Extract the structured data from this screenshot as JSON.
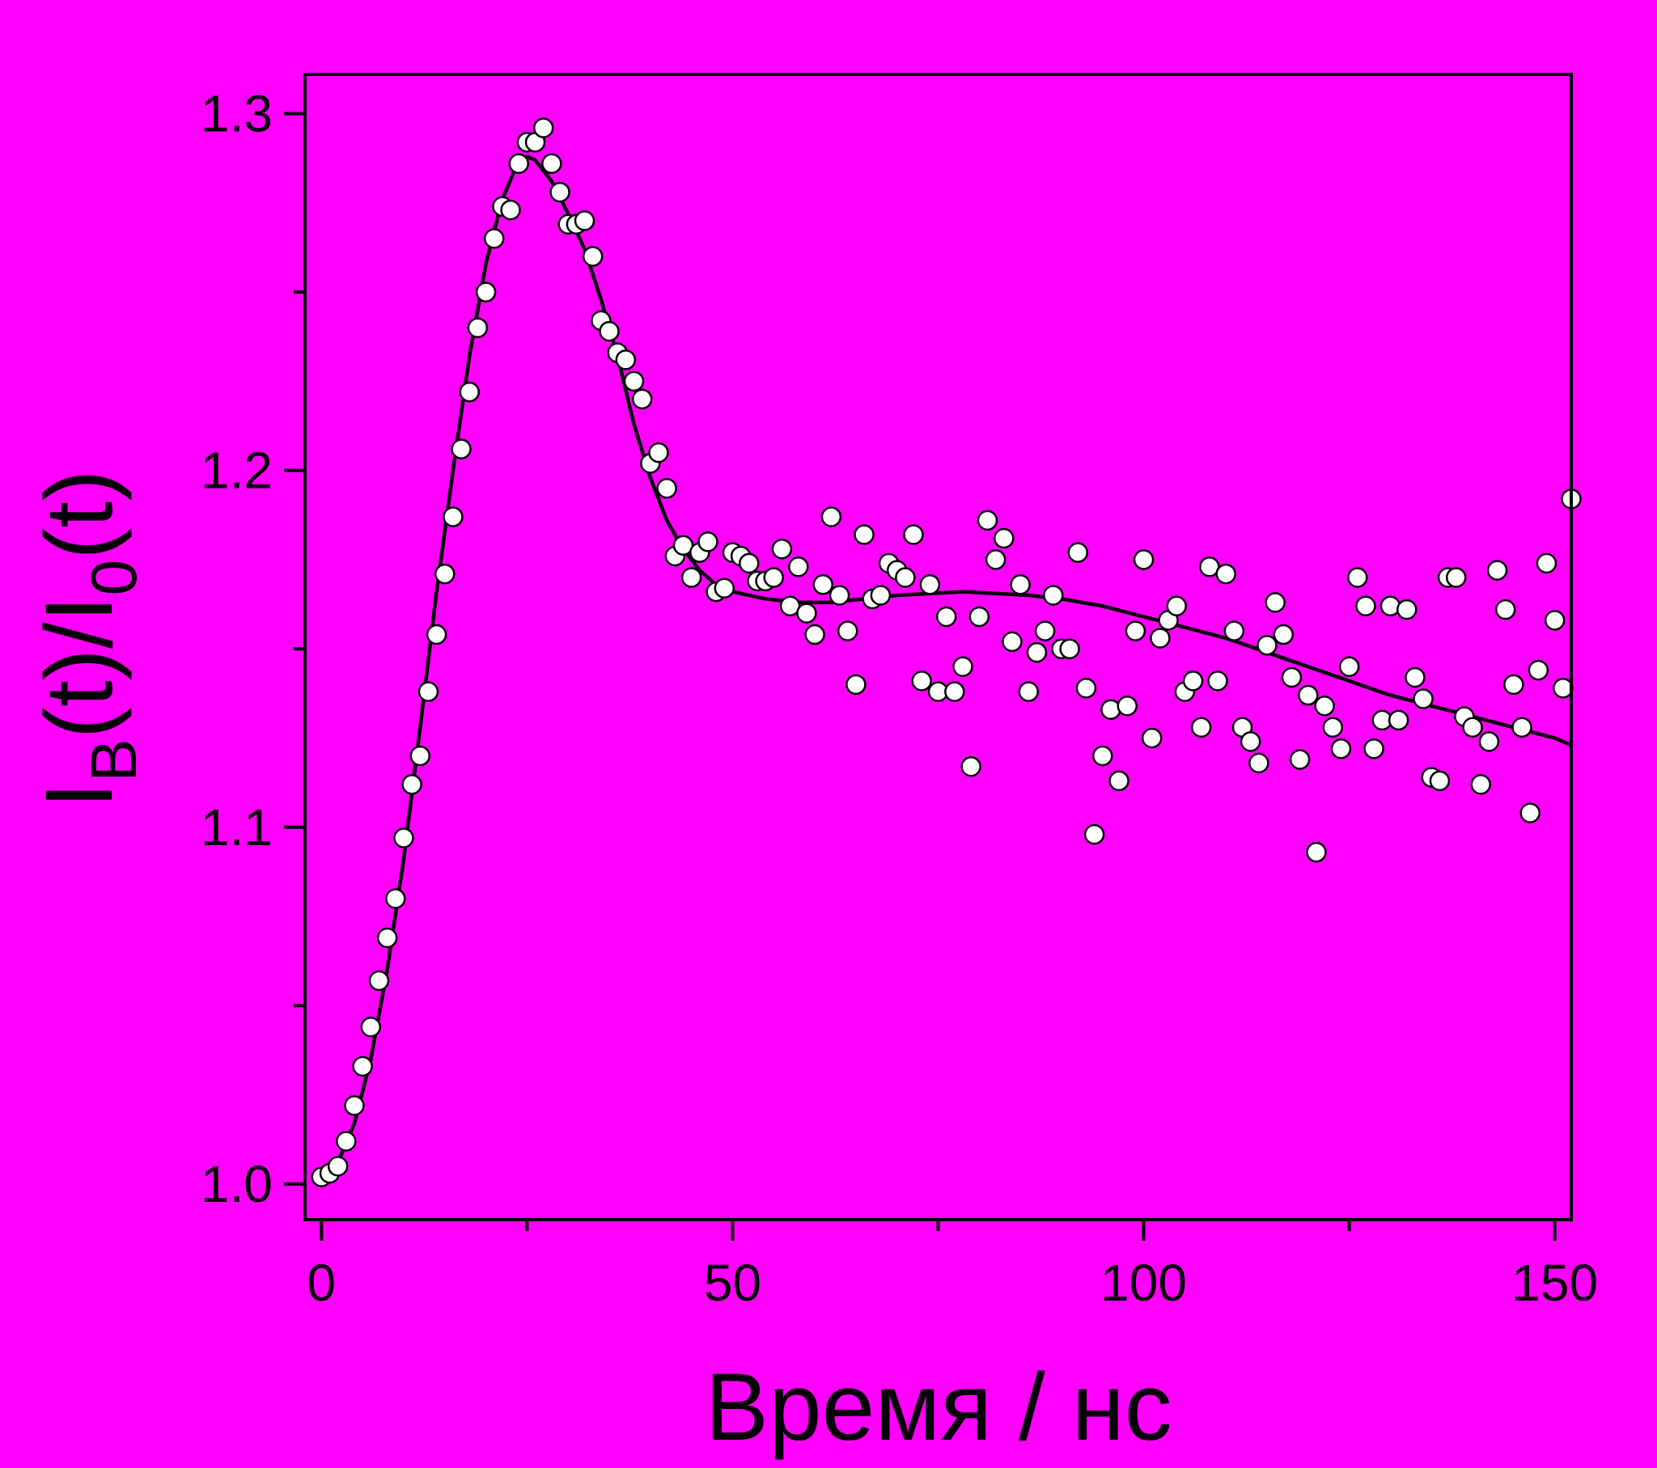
{
  "colors": {
    "background": "#ff00ff",
    "axis": "#000000",
    "marker_fill": "#ffffff",
    "marker_stroke": "#000000",
    "fit_line": "#000000"
  },
  "chart_data": {
    "type": "scatter",
    "title": "",
    "xlabel": "Время / нс",
    "ylabel": {
      "main": "I",
      "sub1": "B",
      "mid": "(t)/I",
      "sub2": "0",
      "tail": "(t)"
    },
    "xlim": [
      -2,
      152
    ],
    "ylim": [
      0.99,
      1.311
    ],
    "x_ticks": [
      0,
      50,
      100,
      150
    ],
    "x_tick_labels": [
      "0",
      "50",
      "100",
      "150"
    ],
    "y_ticks": [
      1.0,
      1.1,
      1.2,
      1.3
    ],
    "y_tick_labels": [
      "1.0",
      "1.1",
      "1.2",
      "1.3"
    ],
    "x_minor_ticks": [
      25,
      75,
      125
    ],
    "y_minor_ticks": [
      1.05,
      1.15,
      1.25
    ],
    "grid": false,
    "legend": "none",
    "series": [
      {
        "kind": "points",
        "marker": "open-circle",
        "points": [
          [
            0.0,
            1.002
          ],
          [
            1.0,
            1.003
          ],
          [
            2.0,
            1.005
          ],
          [
            3.0,
            1.012
          ],
          [
            4.0,
            1.022
          ],
          [
            5.0,
            1.033
          ],
          [
            6.0,
            1.044
          ],
          [
            7.0,
            1.057
          ],
          [
            8.0,
            1.069
          ],
          [
            9.0,
            1.08
          ],
          [
            10.0,
            1.097
          ],
          [
            11.0,
            1.112
          ],
          [
            12.0,
            1.12
          ],
          [
            13.0,
            1.138
          ],
          [
            14.0,
            1.154
          ],
          [
            15.0,
            1.171
          ],
          [
            16.0,
            1.187
          ],
          [
            17.0,
            1.206
          ],
          [
            18.0,
            1.222
          ],
          [
            19.0,
            1.24
          ],
          [
            20.0,
            1.25
          ],
          [
            21.0,
            1.265
          ],
          [
            22.0,
            1.274
          ],
          [
            23.0,
            1.273
          ],
          [
            24.0,
            1.286
          ],
          [
            25.0,
            1.292
          ],
          [
            26.0,
            1.292
          ],
          [
            27.0,
            1.296
          ],
          [
            28.0,
            1.286
          ],
          [
            29.0,
            1.278
          ],
          [
            30.0,
            1.269
          ],
          [
            31.0,
            1.269
          ],
          [
            32.0,
            1.27
          ],
          [
            33.0,
            1.26
          ],
          [
            34.0,
            1.242
          ],
          [
            35.0,
            1.239
          ],
          [
            36.0,
            1.233
          ],
          [
            37.0,
            1.231
          ],
          [
            38.0,
            1.225
          ],
          [
            39.0,
            1.22
          ],
          [
            40.0,
            1.202
          ],
          [
            41.0,
            1.205
          ],
          [
            42.0,
            1.195
          ],
          [
            43.0,
            1.176
          ],
          [
            44.0,
            1.179
          ],
          [
            45.0,
            1.17
          ],
          [
            46.0,
            1.177
          ],
          [
            47.0,
            1.18
          ],
          [
            48.0,
            1.166
          ],
          [
            49.0,
            1.167
          ],
          [
            50.0,
            1.177
          ],
          [
            51.0,
            1.176
          ],
          [
            52.0,
            1.174
          ],
          [
            53.0,
            1.169
          ],
          [
            54.0,
            1.169
          ],
          [
            55.0,
            1.17
          ],
          [
            56.0,
            1.178
          ],
          [
            57.0,
            1.162
          ],
          [
            58.0,
            1.173
          ],
          [
            59.0,
            1.16
          ],
          [
            60.0,
            1.154
          ],
          [
            61.0,
            1.168
          ],
          [
            62.0,
            1.187
          ],
          [
            63.0,
            1.165
          ],
          [
            64.0,
            1.155
          ],
          [
            65.0,
            1.14
          ],
          [
            66.0,
            1.182
          ],
          [
            67.0,
            1.164
          ],
          [
            68.0,
            1.165
          ],
          [
            69.0,
            1.174
          ],
          [
            70.0,
            1.172
          ],
          [
            71.0,
            1.17
          ],
          [
            72.0,
            1.182
          ],
          [
            73.0,
            1.141
          ],
          [
            74.0,
            1.168
          ],
          [
            75.0,
            1.138
          ],
          [
            76.0,
            1.159
          ],
          [
            77.0,
            1.138
          ],
          [
            78.0,
            1.145
          ],
          [
            79.0,
            1.117
          ],
          [
            80.0,
            1.159
          ],
          [
            81.0,
            1.186
          ],
          [
            82.0,
            1.175
          ],
          [
            83.0,
            1.181
          ],
          [
            84.0,
            1.152
          ],
          [
            85.0,
            1.168
          ],
          [
            86.0,
            1.138
          ],
          [
            87.0,
            1.149
          ],
          [
            88.0,
            1.155
          ],
          [
            89.0,
            1.165
          ],
          [
            90.0,
            1.15
          ],
          [
            91.0,
            1.15
          ],
          [
            92.0,
            1.177
          ],
          [
            93.0,
            1.139
          ],
          [
            94.0,
            1.098
          ],
          [
            95.0,
            1.12
          ],
          [
            96.0,
            1.133
          ],
          [
            97.0,
            1.113
          ],
          [
            98.0,
            1.134
          ],
          [
            99.0,
            1.155
          ],
          [
            100.0,
            1.175
          ],
          [
            101.0,
            1.125
          ],
          [
            102.0,
            1.153
          ],
          [
            103.0,
            1.158
          ],
          [
            104.0,
            1.162
          ],
          [
            105.0,
            1.138
          ],
          [
            106.0,
            1.141
          ],
          [
            107.0,
            1.128
          ],
          [
            108.0,
            1.173
          ],
          [
            109.0,
            1.141
          ],
          [
            110.0,
            1.171
          ],
          [
            111.0,
            1.155
          ],
          [
            112.0,
            1.128
          ],
          [
            113.0,
            1.124
          ],
          [
            114.0,
            1.118
          ],
          [
            115.0,
            1.151
          ],
          [
            116.0,
            1.163
          ],
          [
            117.0,
            1.154
          ],
          [
            118.0,
            1.142
          ],
          [
            119.0,
            1.119
          ],
          [
            120.0,
            1.137
          ],
          [
            121.0,
            1.093
          ],
          [
            122.0,
            1.134
          ],
          [
            123.0,
            1.128
          ],
          [
            124.0,
            1.122
          ],
          [
            125.0,
            1.145
          ],
          [
            126.0,
            1.17
          ],
          [
            127.0,
            1.162
          ],
          [
            128.0,
            1.122
          ],
          [
            129.0,
            1.13
          ],
          [
            130.0,
            1.162
          ],
          [
            131.0,
            1.13
          ],
          [
            132.0,
            1.161
          ],
          [
            133.0,
            1.142
          ],
          [
            134.0,
            1.136
          ],
          [
            135.0,
            1.114
          ],
          [
            136.0,
            1.113
          ],
          [
            137.0,
            1.17
          ],
          [
            138.0,
            1.17
          ],
          [
            139.0,
            1.131
          ],
          [
            140.0,
            1.128
          ],
          [
            141.0,
            1.112
          ],
          [
            142.0,
            1.124
          ],
          [
            143.0,
            1.172
          ],
          [
            144.0,
            1.161
          ],
          [
            145.0,
            1.14
          ],
          [
            146.0,
            1.128
          ],
          [
            147.0,
            1.104
          ],
          [
            148.0,
            1.144
          ],
          [
            149.0,
            1.174
          ],
          [
            150.0,
            1.158
          ],
          [
            151.0,
            1.139
          ],
          [
            152.0,
            1.192
          ]
        ]
      },
      {
        "kind": "line",
        "points": [
          [
            0,
            1.002
          ],
          [
            2,
            1.006
          ],
          [
            4,
            1.017
          ],
          [
            6,
            1.035
          ],
          [
            8,
            1.06
          ],
          [
            10,
            1.091
          ],
          [
            12,
            1.128
          ],
          [
            14,
            1.166
          ],
          [
            16,
            1.2
          ],
          [
            18,
            1.232
          ],
          [
            20,
            1.258
          ],
          [
            22,
            1.276
          ],
          [
            24,
            1.287
          ],
          [
            25,
            1.288
          ],
          [
            26,
            1.287
          ],
          [
            28,
            1.281
          ],
          [
            30,
            1.272
          ],
          [
            32,
            1.262
          ],
          [
            34,
            1.248
          ],
          [
            36,
            1.232
          ],
          [
            38,
            1.213
          ],
          [
            40,
            1.198
          ],
          [
            42,
            1.186
          ],
          [
            44,
            1.178
          ],
          [
            46,
            1.172
          ],
          [
            48,
            1.168
          ],
          [
            50,
            1.166
          ],
          [
            54,
            1.164
          ],
          [
            58,
            1.163
          ],
          [
            62,
            1.163
          ],
          [
            66,
            1.164
          ],
          [
            70,
            1.165
          ],
          [
            74,
            1.1655
          ],
          [
            78,
            1.166
          ],
          [
            82,
            1.1655
          ],
          [
            86,
            1.165
          ],
          [
            90,
            1.164
          ],
          [
            95,
            1.162
          ],
          [
            100,
            1.159
          ],
          [
            105,
            1.156
          ],
          [
            110,
            1.153
          ],
          [
            115,
            1.149
          ],
          [
            120,
            1.145
          ],
          [
            125,
            1.141
          ],
          [
            130,
            1.137
          ],
          [
            135,
            1.134
          ],
          [
            140,
            1.131
          ],
          [
            145,
            1.128
          ],
          [
            150,
            1.125
          ],
          [
            152,
            1.123
          ]
        ]
      }
    ]
  }
}
